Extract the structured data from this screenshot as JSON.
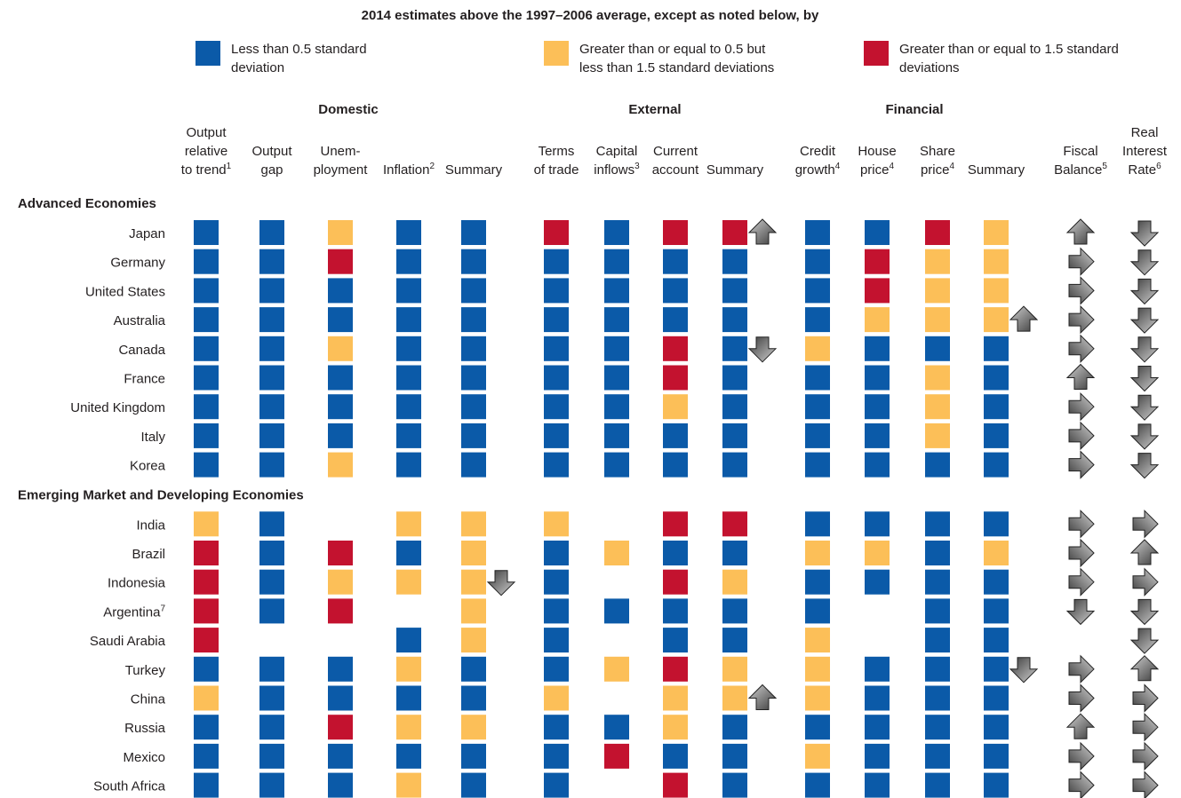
{
  "title": "2014 estimates above the 1997–2006 average, except as noted below, by",
  "legend": [
    {
      "label": [
        "Less than 0.5 standard",
        "deviation"
      ],
      "color": "#0b5aa8"
    },
    {
      "label": [
        "Greater than or equal to 0.5 but",
        "less than 1.5 standard deviations"
      ],
      "color": "#fcbf58"
    },
    {
      "label": [
        "Greater than or equal to 1.5 standard",
        "deviations"
      ],
      "color": "#c3122f"
    }
  ],
  "groups": [
    "Domestic",
    "External",
    "Financial"
  ],
  "columns": [
    {
      "label": [
        "Output",
        "relative",
        "to trend"
      ],
      "note": "1"
    },
    {
      "label": [
        "Output",
        "gap"
      ]
    },
    {
      "label": [
        "Unem-",
        "ployment"
      ]
    },
    {
      "label": [
        "Inflation"
      ],
      "note": "2"
    },
    {
      "label": [
        "Summary"
      ]
    },
    {
      "label": [
        "Terms",
        "of trade"
      ]
    },
    {
      "label": [
        "Capital",
        "inflows"
      ],
      "note": "3"
    },
    {
      "label": [
        "Current",
        "account"
      ]
    },
    {
      "label": [
        "Summary"
      ]
    },
    {
      "label": [
        "Credit",
        "growth"
      ],
      "note": "4"
    },
    {
      "label": [
        "House",
        "price"
      ],
      "note": "4"
    },
    {
      "label": [
        "Share",
        "price"
      ],
      "note": "4"
    },
    {
      "label": [
        "Summary"
      ]
    },
    {
      "label": [
        "Fiscal",
        "Balance"
      ],
      "note": "5"
    },
    {
      "label": [
        "Real",
        "Interest",
        "Rate"
      ],
      "note": "6"
    }
  ],
  "sections": [
    {
      "title": "Advanced Economies",
      "rows": [
        {
          "name": "Japan",
          "cells": [
            0,
            0,
            1,
            0,
            0,
            2,
            0,
            2,
            2,
            0,
            0,
            2,
            1
          ],
          "summary_arrows": [
            null,
            "up",
            null
          ],
          "arrows": [
            "up",
            "down"
          ]
        },
        {
          "name": "Germany",
          "cells": [
            0,
            0,
            2,
            0,
            0,
            0,
            0,
            0,
            0,
            0,
            2,
            1,
            1
          ],
          "summary_arrows": [
            null,
            null,
            null
          ],
          "arrows": [
            "right",
            "down"
          ]
        },
        {
          "name": "United States",
          "cells": [
            0,
            0,
            0,
            0,
            0,
            0,
            0,
            0,
            0,
            0,
            2,
            1,
            1
          ],
          "summary_arrows": [
            null,
            null,
            null
          ],
          "arrows": [
            "right",
            "down"
          ]
        },
        {
          "name": "Australia",
          "cells": [
            0,
            0,
            0,
            0,
            0,
            0,
            0,
            0,
            0,
            0,
            1,
            1,
            1
          ],
          "summary_arrows": [
            null,
            null,
            "up"
          ],
          "arrows": [
            "right",
            "down"
          ]
        },
        {
          "name": "Canada",
          "cells": [
            0,
            0,
            1,
            0,
            0,
            0,
            0,
            2,
            0,
            1,
            0,
            0,
            0
          ],
          "summary_arrows": [
            null,
            "down",
            null
          ],
          "arrows": [
            "right",
            "down"
          ]
        },
        {
          "name": "France",
          "cells": [
            0,
            0,
            0,
            0,
            0,
            0,
            0,
            2,
            0,
            0,
            0,
            1,
            0
          ],
          "summary_arrows": [
            null,
            null,
            null
          ],
          "arrows": [
            "up",
            "down"
          ]
        },
        {
          "name": "United Kingdom",
          "cells": [
            0,
            0,
            0,
            0,
            0,
            0,
            0,
            1,
            0,
            0,
            0,
            1,
            0
          ],
          "summary_arrows": [
            null,
            null,
            null
          ],
          "arrows": [
            "right",
            "down"
          ]
        },
        {
          "name": "Italy",
          "cells": [
            0,
            0,
            0,
            0,
            0,
            0,
            0,
            0,
            0,
            0,
            0,
            1,
            0
          ],
          "summary_arrows": [
            null,
            null,
            null
          ],
          "arrows": [
            "right",
            "down"
          ]
        },
        {
          "name": "Korea",
          "cells": [
            0,
            0,
            1,
            0,
            0,
            0,
            0,
            0,
            0,
            0,
            0,
            0,
            0
          ],
          "summary_arrows": [
            null,
            null,
            null
          ],
          "arrows": [
            "right",
            "down"
          ]
        }
      ]
    },
    {
      "title": "Emerging Market and Developing Economies",
      "rows": [
        {
          "name": "India",
          "cells": [
            1,
            0,
            null,
            1,
            1,
            1,
            null,
            2,
            2,
            0,
            0,
            0,
            0
          ],
          "summary_arrows": [
            null,
            null,
            null
          ],
          "arrows": [
            "right",
            "right"
          ]
        },
        {
          "name": "Brazil",
          "cells": [
            2,
            0,
            2,
            0,
            1,
            0,
            1,
            0,
            0,
            1,
            1,
            0,
            1
          ],
          "summary_arrows": [
            null,
            null,
            null
          ],
          "arrows": [
            "right",
            "up"
          ]
        },
        {
          "name": "Indonesia",
          "cells": [
            2,
            0,
            1,
            1,
            1,
            0,
            null,
            2,
            1,
            0,
            0,
            0,
            0
          ],
          "summary_arrows": [
            "down",
            null,
            null
          ],
          "arrows": [
            "right",
            "right"
          ]
        },
        {
          "name": "Argentina",
          "note": "7",
          "cells": [
            2,
            0,
            2,
            null,
            1,
            0,
            0,
            0,
            0,
            0,
            null,
            0,
            0
          ],
          "summary_arrows": [
            null,
            null,
            null
          ],
          "arrows": [
            "down",
            "down"
          ]
        },
        {
          "name": "Saudi Arabia",
          "cells": [
            2,
            null,
            null,
            0,
            1,
            0,
            null,
            0,
            0,
            1,
            null,
            0,
            0
          ],
          "summary_arrows": [
            null,
            null,
            null
          ],
          "arrows": [
            null,
            "down"
          ]
        },
        {
          "name": "Turkey",
          "cells": [
            0,
            0,
            0,
            1,
            0,
            0,
            1,
            2,
            1,
            1,
            0,
            0,
            0
          ],
          "summary_arrows": [
            null,
            null,
            "down"
          ],
          "arrows": [
            "right",
            "up"
          ]
        },
        {
          "name": "China",
          "cells": [
            1,
            0,
            0,
            0,
            0,
            1,
            null,
            1,
            1,
            1,
            0,
            0,
            0
          ],
          "summary_arrows": [
            null,
            "up",
            null
          ],
          "arrows": [
            "right",
            "right"
          ]
        },
        {
          "name": "Russia",
          "cells": [
            0,
            0,
            2,
            1,
            1,
            0,
            0,
            1,
            0,
            0,
            0,
            0,
            0
          ],
          "summary_arrows": [
            null,
            null,
            null
          ],
          "arrows": [
            "up",
            "right"
          ]
        },
        {
          "name": "Mexico",
          "cells": [
            0,
            0,
            0,
            0,
            0,
            0,
            2,
            0,
            0,
            1,
            0,
            0,
            0
          ],
          "summary_arrows": [
            null,
            null,
            null
          ],
          "arrows": [
            "right",
            "right"
          ]
        },
        {
          "name": "South Africa",
          "cells": [
            0,
            0,
            0,
            1,
            0,
            0,
            null,
            2,
            0,
            0,
            0,
            0,
            0
          ],
          "summary_arrows": [
            null,
            null,
            null
          ],
          "arrows": [
            "right",
            "right"
          ]
        }
      ]
    }
  ]
}
